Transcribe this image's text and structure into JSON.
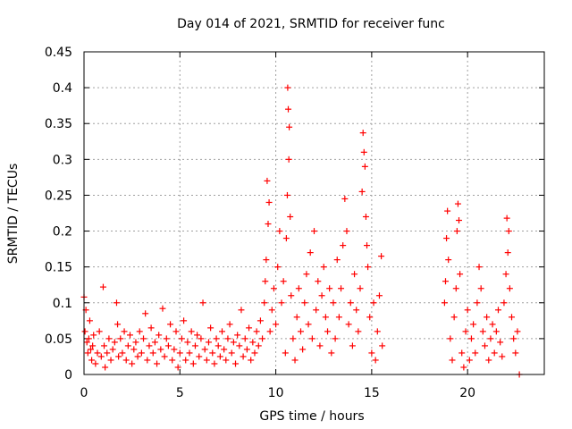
{
  "chart_data": {
    "type": "scatter",
    "title": "Day 014 of 2021, SRMTID for receiver func",
    "xlabel": "GPS time / hours",
    "ylabel": "SRMTID / TECUs",
    "xlim": [
      0,
      24
    ],
    "ylim": [
      0,
      0.45
    ],
    "xticks": [
      0,
      5,
      10,
      15,
      20
    ],
    "xtick_labels": [
      "0",
      "5",
      "10",
      "15",
      "20"
    ],
    "yticks": [
      0,
      0.05,
      0.1,
      0.15,
      0.2,
      0.25,
      0.3,
      0.35,
      0.4,
      0.45
    ],
    "ytick_labels": [
      "0",
      "0.05",
      "0.1",
      "0.15",
      "0.2",
      "0.25",
      "0.3",
      "0.35",
      "0.4",
      "0.45"
    ],
    "grid": true,
    "marker": "+",
    "color": "#ff0000",
    "series": [
      {
        "name": "SRMTID",
        "points": [
          [
            0.0,
            0.108
          ],
          [
            0.05,
            0.06
          ],
          [
            0.1,
            0.09
          ],
          [
            0.15,
            0.045
          ],
          [
            0.2,
            0.03
          ],
          [
            0.25,
            0.05
          ],
          [
            0.3,
            0.075
          ],
          [
            0.35,
            0.035
          ],
          [
            0.4,
            0.02
          ],
          [
            0.45,
            0.04
          ],
          [
            0.5,
            0.055
          ],
          [
            0.6,
            0.015
          ],
          [
            0.7,
            0.03
          ],
          [
            0.8,
            0.06
          ],
          [
            0.9,
            0.025
          ],
          [
            1.0,
            0.122
          ],
          [
            1.05,
            0.04
          ],
          [
            1.1,
            0.01
          ],
          [
            1.2,
            0.03
          ],
          [
            1.3,
            0.05
          ],
          [
            1.4,
            0.02
          ],
          [
            1.5,
            0.035
          ],
          [
            1.6,
            0.045
          ],
          [
            1.7,
            0.1
          ],
          [
            1.75,
            0.07
          ],
          [
            1.8,
            0.025
          ],
          [
            1.9,
            0.05
          ],
          [
            2.0,
            0.03
          ],
          [
            2.1,
            0.06
          ],
          [
            2.2,
            0.02
          ],
          [
            2.3,
            0.04
          ],
          [
            2.4,
            0.055
          ],
          [
            2.5,
            0.015
          ],
          [
            2.6,
            0.035
          ],
          [
            2.7,
            0.045
          ],
          [
            2.8,
            0.025
          ],
          [
            2.9,
            0.06
          ],
          [
            3.0,
            0.03
          ],
          [
            3.1,
            0.05
          ],
          [
            3.2,
            0.085
          ],
          [
            3.3,
            0.02
          ],
          [
            3.4,
            0.04
          ],
          [
            3.5,
            0.065
          ],
          [
            3.6,
            0.03
          ],
          [
            3.7,
            0.045
          ],
          [
            3.8,
            0.015
          ],
          [
            3.9,
            0.055
          ],
          [
            4.0,
            0.035
          ],
          [
            4.1,
            0.092
          ],
          [
            4.2,
            0.025
          ],
          [
            4.3,
            0.05
          ],
          [
            4.4,
            0.04
          ],
          [
            4.5,
            0.07
          ],
          [
            4.6,
            0.02
          ],
          [
            4.7,
            0.035
          ],
          [
            4.8,
            0.06
          ],
          [
            4.9,
            0.01
          ],
          [
            5.0,
            0.03
          ],
          [
            5.1,
            0.05
          ],
          [
            5.2,
            0.075
          ],
          [
            5.3,
            0.02
          ],
          [
            5.4,
            0.045
          ],
          [
            5.5,
            0.03
          ],
          [
            5.6,
            0.06
          ],
          [
            5.7,
            0.015
          ],
          [
            5.8,
            0.04
          ],
          [
            5.9,
            0.055
          ],
          [
            6.0,
            0.025
          ],
          [
            6.1,
            0.05
          ],
          [
            6.2,
            0.1
          ],
          [
            6.3,
            0.035
          ],
          [
            6.4,
            0.02
          ],
          [
            6.5,
            0.045
          ],
          [
            6.6,
            0.065
          ],
          [
            6.7,
            0.03
          ],
          [
            6.8,
            0.015
          ],
          [
            6.9,
            0.05
          ],
          [
            7.0,
            0.04
          ],
          [
            7.1,
            0.025
          ],
          [
            7.2,
            0.06
          ],
          [
            7.3,
            0.035
          ],
          [
            7.4,
            0.02
          ],
          [
            7.5,
            0.05
          ],
          [
            7.6,
            0.07
          ],
          [
            7.7,
            0.03
          ],
          [
            7.8,
            0.045
          ],
          [
            7.9,
            0.015
          ],
          [
            8.0,
            0.055
          ],
          [
            8.1,
            0.04
          ],
          [
            8.2,
            0.09
          ],
          [
            8.3,
            0.025
          ],
          [
            8.4,
            0.05
          ],
          [
            8.5,
            0.035
          ],
          [
            8.6,
            0.065
          ],
          [
            8.7,
            0.02
          ],
          [
            8.8,
            0.045
          ],
          [
            8.9,
            0.03
          ],
          [
            9.0,
            0.06
          ],
          [
            9.1,
            0.04
          ],
          [
            9.2,
            0.075
          ],
          [
            9.3,
            0.05
          ],
          [
            9.4,
            0.1
          ],
          [
            9.45,
            0.13
          ],
          [
            9.5,
            0.16
          ],
          [
            9.55,
            0.27
          ],
          [
            9.6,
            0.21
          ],
          [
            9.65,
            0.24
          ],
          [
            9.7,
            0.06
          ],
          [
            9.8,
            0.09
          ],
          [
            9.9,
            0.12
          ],
          [
            10.0,
            0.07
          ],
          [
            10.1,
            0.15
          ],
          [
            10.2,
            0.2
          ],
          [
            10.3,
            0.1
          ],
          [
            10.4,
            0.13
          ],
          [
            10.5,
            0.03
          ],
          [
            10.55,
            0.19
          ],
          [
            10.6,
            0.25
          ],
          [
            10.62,
            0.4
          ],
          [
            10.65,
            0.37
          ],
          [
            10.68,
            0.3
          ],
          [
            10.7,
            0.345
          ],
          [
            10.75,
            0.22
          ],
          [
            10.8,
            0.11
          ],
          [
            10.9,
            0.05
          ],
          [
            11.0,
            0.02
          ],
          [
            11.1,
            0.08
          ],
          [
            11.2,
            0.12
          ],
          [
            11.3,
            0.06
          ],
          [
            11.4,
            0.035
          ],
          [
            11.5,
            0.1
          ],
          [
            11.6,
            0.14
          ],
          [
            11.7,
            0.07
          ],
          [
            11.8,
            0.17
          ],
          [
            11.9,
            0.05
          ],
          [
            12.0,
            0.2
          ],
          [
            12.1,
            0.09
          ],
          [
            12.2,
            0.13
          ],
          [
            12.3,
            0.04
          ],
          [
            12.4,
            0.11
          ],
          [
            12.5,
            0.15
          ],
          [
            12.6,
            0.08
          ],
          [
            12.7,
            0.06
          ],
          [
            12.8,
            0.12
          ],
          [
            12.9,
            0.03
          ],
          [
            13.0,
            0.1
          ],
          [
            13.1,
            0.05
          ],
          [
            13.2,
            0.16
          ],
          [
            13.3,
            0.08
          ],
          [
            13.4,
            0.12
          ],
          [
            13.5,
            0.18
          ],
          [
            13.6,
            0.245
          ],
          [
            13.7,
            0.2
          ],
          [
            13.8,
            0.07
          ],
          [
            13.9,
            0.1
          ],
          [
            14.0,
            0.04
          ],
          [
            14.1,
            0.14
          ],
          [
            14.2,
            0.09
          ],
          [
            14.3,
            0.06
          ],
          [
            14.4,
            0.12
          ],
          [
            14.5,
            0.255
          ],
          [
            14.55,
            0.337
          ],
          [
            14.6,
            0.31
          ],
          [
            14.65,
            0.29
          ],
          [
            14.7,
            0.22
          ],
          [
            14.75,
            0.18
          ],
          [
            14.8,
            0.15
          ],
          [
            14.9,
            0.08
          ],
          [
            15.0,
            0.03
          ],
          [
            15.1,
            0.1
          ],
          [
            15.2,
            0.02
          ],
          [
            15.3,
            0.06
          ],
          [
            15.4,
            0.11
          ],
          [
            15.5,
            0.165
          ],
          [
            15.55,
            0.04
          ],
          [
            18.8,
            0.1
          ],
          [
            18.85,
            0.13
          ],
          [
            18.9,
            0.19
          ],
          [
            18.95,
            0.228
          ],
          [
            19.0,
            0.16
          ],
          [
            19.1,
            0.05
          ],
          [
            19.2,
            0.02
          ],
          [
            19.3,
            0.08
          ],
          [
            19.4,
            0.12
          ],
          [
            19.45,
            0.2
          ],
          [
            19.5,
            0.238
          ],
          [
            19.55,
            0.215
          ],
          [
            19.6,
            0.14
          ],
          [
            19.7,
            0.03
          ],
          [
            19.8,
            0.01
          ],
          [
            19.9,
            0.06
          ],
          [
            20.0,
            0.09
          ],
          [
            20.1,
            0.02
          ],
          [
            20.2,
            0.05
          ],
          [
            20.3,
            0.07
          ],
          [
            20.4,
            0.03
          ],
          [
            20.5,
            0.1
          ],
          [
            20.6,
            0.15
          ],
          [
            20.7,
            0.12
          ],
          [
            20.8,
            0.06
          ],
          [
            20.9,
            0.04
          ],
          [
            21.0,
            0.08
          ],
          [
            21.1,
            0.02
          ],
          [
            21.2,
            0.05
          ],
          [
            21.3,
            0.07
          ],
          [
            21.4,
            0.03
          ],
          [
            21.5,
            0.06
          ],
          [
            21.6,
            0.09
          ],
          [
            21.7,
            0.045
          ],
          [
            21.8,
            0.025
          ],
          [
            21.9,
            0.1
          ],
          [
            22.0,
            0.14
          ],
          [
            22.05,
            0.218
          ],
          [
            22.1,
            0.17
          ],
          [
            22.15,
            0.2
          ],
          [
            22.2,
            0.12
          ],
          [
            22.3,
            0.08
          ],
          [
            22.4,
            0.05
          ],
          [
            22.5,
            0.03
          ],
          [
            22.6,
            0.06
          ],
          [
            22.7,
            0.0
          ]
        ]
      }
    ]
  }
}
